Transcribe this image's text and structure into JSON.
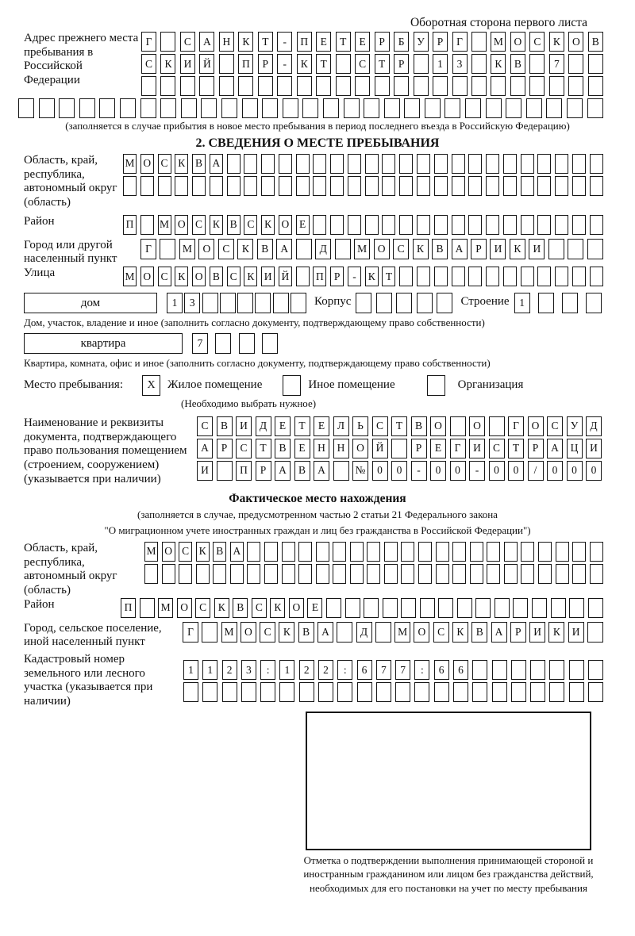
{
  "page": {
    "header_note": "Оборотная сторона первого листа"
  },
  "prev_address": {
    "label": "Адрес прежнего места пребывания в Российской Федерации",
    "rows": [
      {
        "text": "Г САНКТ-ПЕТЕРБУРГ МОСКОВ",
        "len": 24
      },
      {
        "text": "СКИЙ ПР-КТ СТР 13 КВ 7",
        "len": 24
      },
      {
        "text": "",
        "len": 24
      }
    ],
    "overflow_row": {
      "text": "",
      "len": 29
    },
    "caption": "(заполняется в случае прибытия в новое место пребывания в период последнего въезда в Российскую Федерацию)"
  },
  "section2": {
    "title": "2. СВЕДЕНИЯ О МЕСТЕ ПРЕБЫВАНИЯ",
    "region": {
      "label": "Область, край, республика, автономный округ (область)",
      "rows": [
        {
          "text": "МОСКВА",
          "len": 28
        },
        {
          "text": "",
          "len": 28
        }
      ]
    },
    "district": {
      "label": "Район",
      "row": {
        "text": "П МОСКВСКОЕ",
        "len": 28
      }
    },
    "city": {
      "label": "Город или другой населенный пункт",
      "row": {
        "text": "Г МОСКВА Д МОСКВАРИКИ",
        "len": 24
      }
    },
    "street": {
      "label": "Улица",
      "row": {
        "text": "МОСКОВСКИЙ ПР-КТ",
        "len": 28
      }
    },
    "house": {
      "box_label": "дом",
      "number": {
        "text": "13",
        "len": 8
      },
      "korpus_label": "Корпус",
      "korpus": {
        "text": "",
        "len": 5
      },
      "stroenie_label": "Строение",
      "stroenie": {
        "text": "1",
        "len": 4
      },
      "caption": "Дом, участок, владение и иное (заполнить согласно документу, подтверждающему право собственности)"
    },
    "apartment": {
      "box_label": "квартира",
      "number": {
        "text": "7",
        "len": 4
      },
      "caption": "Квартира, комната, офис и иное (заполнить согласно документу, подтверждающему право собственности)"
    },
    "stay_type": {
      "label": "Место пребывания:",
      "options": [
        {
          "label": "Жилое помещение",
          "checked": "X"
        },
        {
          "label": "Иное помещение",
          "checked": ""
        },
        {
          "label": "Организация",
          "checked": ""
        }
      ],
      "note": "(Необходимо выбрать нужное)"
    },
    "document": {
      "label": "Наименование и реквизиты документа, подтверждающего право пользования помещением (строением, сооружением) (указывается при наличии)",
      "rows": [
        {
          "text": "СВИДЕТЕЛЬСТВО О ГОСУД",
          "len": 21
        },
        {
          "text": "АРСТВЕННОЙ РЕГИСТРАЦИ",
          "len": 21
        },
        {
          "text": "И ПРАВА №00-00-00/000",
          "len": 21
        }
      ]
    }
  },
  "actual_location": {
    "title": "Фактическое место нахождения",
    "caption_line1": "(заполняется в случае, предусмотренном частью 2 статьи 21 Федерального закона",
    "caption_line2": "\"О миграционном учете иностранных граждан и лиц без гражданства в Российской Федерации\")",
    "region": {
      "label": "Область, край, республика, автономный округ (область)",
      "rows": [
        {
          "text": "МОСКВА",
          "len": 27
        },
        {
          "text": "",
          "len": 27
        }
      ]
    },
    "district": {
      "label": "Район",
      "row": {
        "text": "П МОСКВСКОЕ",
        "len": 26
      }
    },
    "city": {
      "label": "Город, сельское поселение, иной населенный пункт",
      "row": {
        "text": "Г МОСКВА Д МОСКВАРИКИ",
        "len": 22
      }
    },
    "cadastral": {
      "label": "Кадастровый номер земельного или лесного участка (указывается при наличии)",
      "rows": [
        {
          "text": "1123:122:677:66",
          "len": 22
        },
        {
          "text": "",
          "len": 22
        }
      ]
    },
    "stamp_caption": "Отметка о подтверждении выполнения принимающей стороной и иностранным гражданином или лицом без гражданства действий, необходимых для его постановки на учет по месту пребывания"
  }
}
